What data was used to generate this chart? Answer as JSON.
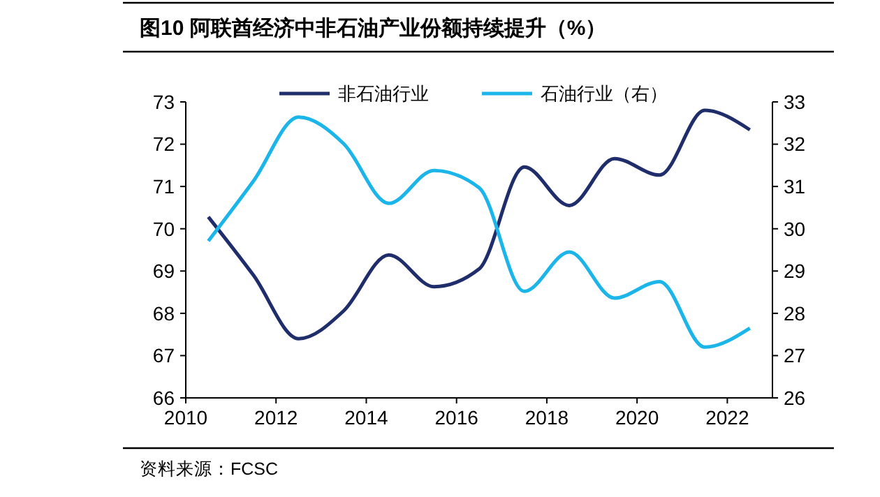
{
  "chart_data": {
    "type": "line",
    "title": "图10 阿联酋经济中非石油产业份额持续提升（%）",
    "annotations": [
      "资料来源：FCSC"
    ],
    "x": [
      2010.5,
      2011.5,
      2012.5,
      2013.5,
      2014.5,
      2015.5,
      2016.5,
      2017.5,
      2018.5,
      2019.5,
      2020.5,
      2021.5,
      2022.5
    ],
    "xlim": [
      2010,
      2023
    ],
    "xticks": [
      2010,
      2012,
      2014,
      2016,
      2018,
      2020,
      2022
    ],
    "ylim": [
      66,
      73
    ],
    "yticks": [
      66,
      67,
      68,
      69,
      70,
      71,
      72,
      73
    ],
    "y2lim": [
      26,
      33
    ],
    "y2ticks": [
      26,
      27,
      28,
      29,
      30,
      31,
      32,
      33
    ],
    "legend": "top",
    "grid": false,
    "series": [
      {
        "name": "非石油行业",
        "color": "#1f2d6b",
        "values": [
          70.28,
          68.9,
          67.4,
          68.06,
          69.38,
          68.63,
          69.05,
          71.46,
          70.55,
          71.66,
          71.27,
          72.8,
          72.34
        ]
      },
      {
        "name": "石油行业（右）",
        "color": "#1bb5ea",
        "axis": "y2",
        "values": [
          29.71,
          31.13,
          32.64,
          32.01,
          30.6,
          31.38,
          30.97,
          28.52,
          29.45,
          28.36,
          28.75,
          27.2,
          27.65
        ]
      }
    ]
  }
}
